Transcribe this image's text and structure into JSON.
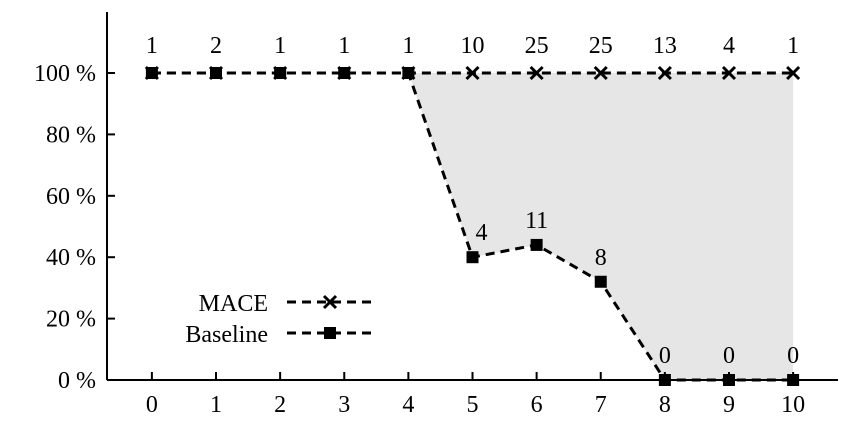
{
  "chart_data": {
    "type": "line",
    "title": "",
    "xlabel": "",
    "ylabel": "",
    "x": [
      0,
      1,
      2,
      3,
      4,
      5,
      6,
      7,
      8,
      9,
      10
    ],
    "xlim": [
      -0.7,
      10.7
    ],
    "ylim": [
      0,
      100
    ],
    "x_ticks": [
      "0",
      "1",
      "2",
      "3",
      "4",
      "5",
      "6",
      "7",
      "8",
      "9",
      "10"
    ],
    "y_ticks": [
      "0 %",
      "20 %",
      "40 %",
      "60 %",
      "80 %",
      "100 %"
    ],
    "y_tick_values": [
      0,
      20,
      40,
      60,
      80,
      100
    ],
    "grid": false,
    "legend_position": "bottom-left",
    "series": [
      {
        "name": "MACE",
        "marker": "cross",
        "line_style": "dashed",
        "color": "#000000",
        "values": [
          100,
          100,
          100,
          100,
          100,
          100,
          100,
          100,
          100,
          100,
          100
        ],
        "labels": [
          "1",
          "2",
          "1",
          "1",
          "1",
          "10",
          "25",
          "25",
          "13",
          "4",
          "1"
        ]
      },
      {
        "name": "Baseline",
        "marker": "square",
        "line_style": "dashed",
        "color": "#000000",
        "values": [
          100,
          100,
          100,
          100,
          100,
          40,
          44,
          32,
          0,
          0,
          0
        ],
        "labels": [
          "",
          "",
          "",
          "",
          "",
          "4",
          "11",
          "8",
          "0",
          "0",
          "0"
        ]
      }
    ],
    "shaded_region": {
      "between": [
        "MACE",
        "Baseline"
      ],
      "color": "#e6e6e6"
    }
  }
}
